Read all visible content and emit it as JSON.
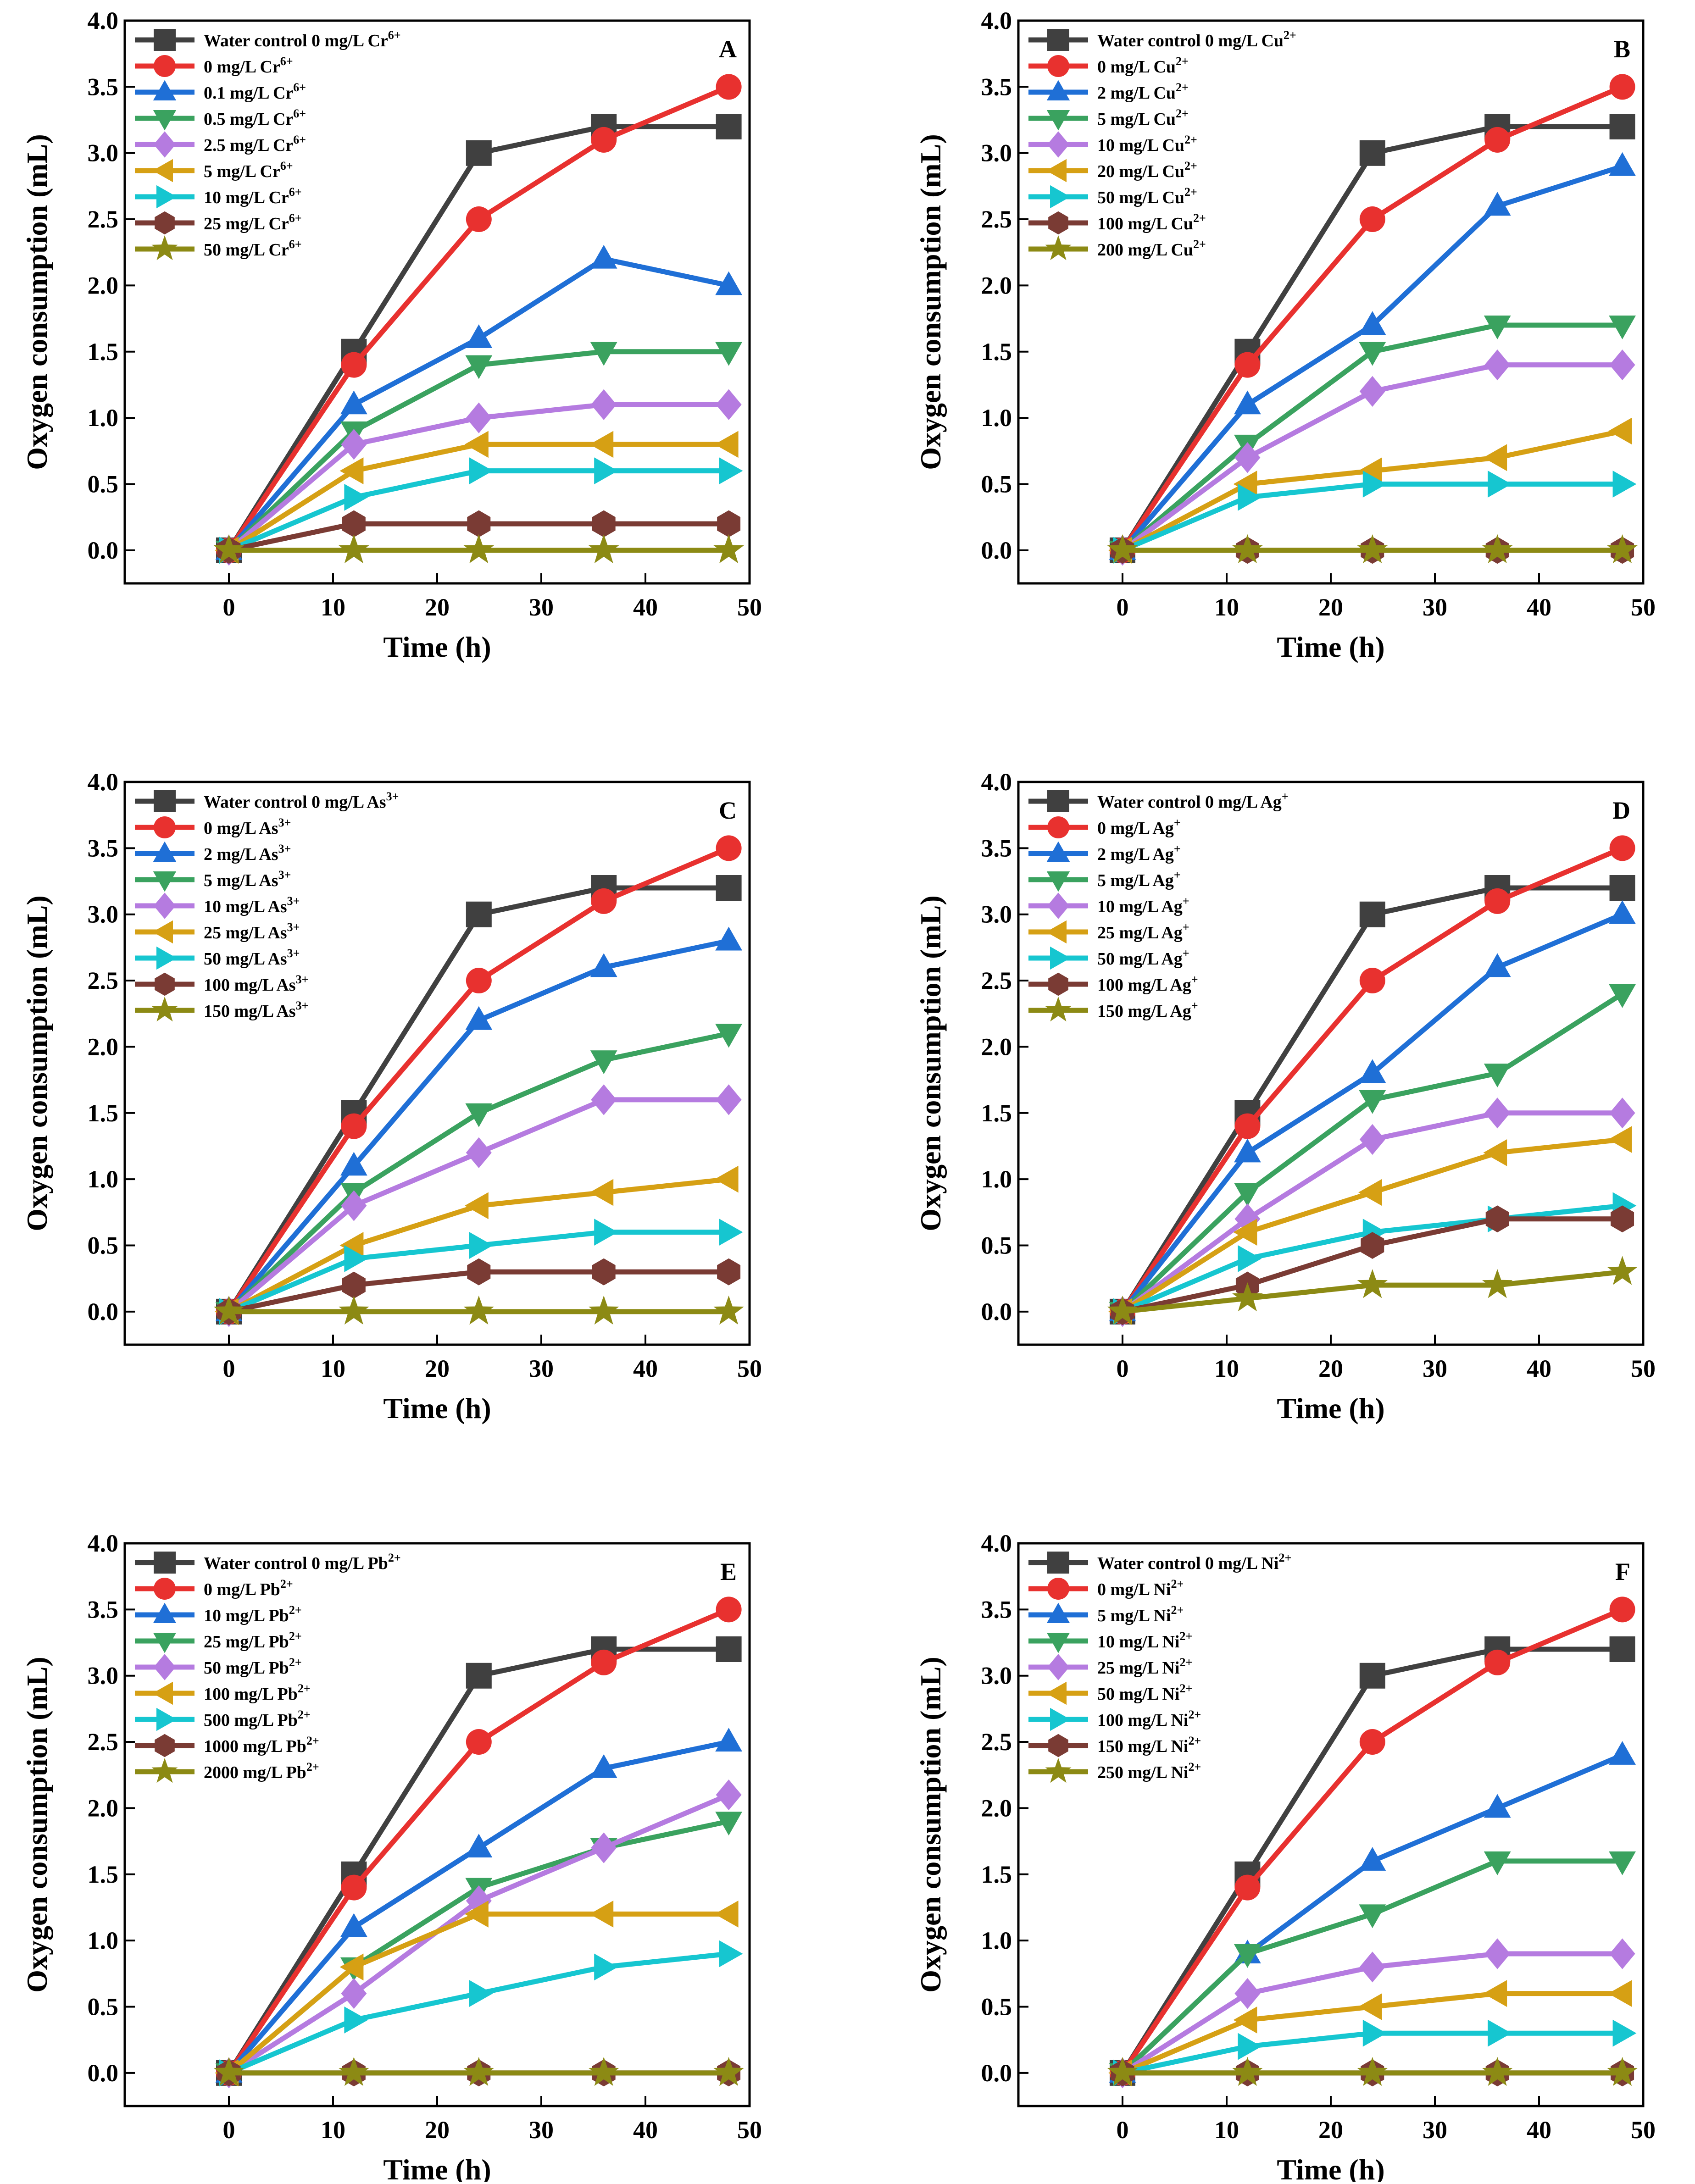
{
  "axis": {
    "xlabel": "Time (h)",
    "ylabel": "Oxygen consumption (mL)",
    "xlim": [
      -10,
      50
    ],
    "ylim": [
      -0.25,
      4.0
    ],
    "xticks": [
      0,
      10,
      20,
      30,
      40,
      50
    ],
    "yticks": [
      0.0,
      0.5,
      1.0,
      1.5,
      2.0,
      2.5,
      3.0,
      3.5,
      4.0
    ],
    "yticklabels": [
      "0.0",
      "0.5",
      "1.0",
      "1.5",
      "2.0",
      "2.5",
      "3.0",
      "3.5",
      "4.0"
    ]
  },
  "series_style": [
    {
      "color": "#404040",
      "marker": "square"
    },
    {
      "color": "#e8312f",
      "marker": "circle"
    },
    {
      "color": "#1f6fd6",
      "marker": "triangle-up"
    },
    {
      "color": "#3aa25f",
      "marker": "triangle-down"
    },
    {
      "color": "#b57be0",
      "marker": "diamond"
    },
    {
      "color": "#d6a014",
      "marker": "triangle-left"
    },
    {
      "color": "#16c6d0",
      "marker": "triangle-right"
    },
    {
      "color": "#7a3b34",
      "marker": "hexagon"
    },
    {
      "color": "#8c8a14",
      "marker": "star"
    }
  ],
  "chart_data": [
    {
      "type": "line",
      "panel": "A",
      "x": [
        0,
        12,
        24,
        36,
        48
      ],
      "xlabel": "Time (h)",
      "ylabel": "Oxygen consumption (mL)",
      "xlim": [
        -10,
        50
      ],
      "ylim": [
        -0.25,
        4.0
      ],
      "legend_position": "top-left",
      "series": [
        {
          "name": "Water control 0 mg/L Cr",
          "sup": "6+",
          "values": [
            0,
            1.5,
            3.0,
            3.2,
            3.2
          ]
        },
        {
          "name": "0 mg/L Cr",
          "sup": "6+",
          "values": [
            0,
            1.4,
            2.5,
            3.1,
            3.5
          ]
        },
        {
          "name": "0.1 mg/L Cr",
          "sup": "6+",
          "values": [
            0,
            1.1,
            1.6,
            2.2,
            2.0
          ]
        },
        {
          "name": "0.5 mg/L Cr",
          "sup": "6+",
          "values": [
            0,
            0.9,
            1.4,
            1.5,
            1.5
          ]
        },
        {
          "name": "2.5 mg/L Cr",
          "sup": "6+",
          "values": [
            0,
            0.8,
            1.0,
            1.1,
            1.1
          ]
        },
        {
          "name": "5 mg/L Cr",
          "sup": "6+",
          "values": [
            0,
            0.6,
            0.8,
            0.8,
            0.8
          ]
        },
        {
          "name": "10 mg/L Cr",
          "sup": "6+",
          "values": [
            0,
            0.4,
            0.6,
            0.6,
            0.6
          ]
        },
        {
          "name": "25 mg/L Cr",
          "sup": "6+",
          "values": [
            0,
            0.2,
            0.2,
            0.2,
            0.2
          ]
        },
        {
          "name": "50 mg/L Cr",
          "sup": "6+",
          "values": [
            0,
            0,
            0,
            0,
            0
          ]
        }
      ]
    },
    {
      "type": "line",
      "panel": "B",
      "x": [
        0,
        12,
        24,
        36,
        48
      ],
      "xlabel": "Time (h)",
      "ylabel": "Oxygen consumption (mL)",
      "xlim": [
        -10,
        50
      ],
      "ylim": [
        -0.25,
        4.0
      ],
      "legend_position": "top-left",
      "series": [
        {
          "name": "Water control 0 mg/L Cu",
          "sup": "2+",
          "values": [
            0,
            1.5,
            3.0,
            3.2,
            3.2
          ]
        },
        {
          "name": "0 mg/L Cu",
          "sup": "2+",
          "values": [
            0,
            1.4,
            2.5,
            3.1,
            3.5
          ]
        },
        {
          "name": "2 mg/L Cu",
          "sup": "2+",
          "values": [
            0,
            1.1,
            1.7,
            2.6,
            2.9
          ]
        },
        {
          "name": "5 mg/L Cu",
          "sup": "2+",
          "values": [
            0,
            0.8,
            1.5,
            1.7,
            1.7
          ]
        },
        {
          "name": "10 mg/L Cu",
          "sup": "2+",
          "values": [
            0,
            0.7,
            1.2,
            1.4,
            1.4
          ]
        },
        {
          "name": "20 mg/L Cu",
          "sup": "2+",
          "values": [
            0,
            0.5,
            0.6,
            0.7,
            0.9
          ]
        },
        {
          "name": "50 mg/L Cu",
          "sup": "2+",
          "values": [
            0,
            0.4,
            0.5,
            0.5,
            0.5
          ]
        },
        {
          "name": "100 mg/L Cu",
          "sup": "2+",
          "values": [
            0,
            0,
            0,
            0,
            0
          ]
        },
        {
          "name": "200 mg/L Cu",
          "sup": "2+",
          "values": [
            0,
            0,
            0,
            0,
            0
          ]
        }
      ]
    },
    {
      "type": "line",
      "panel": "C",
      "x": [
        0,
        12,
        24,
        36,
        48
      ],
      "xlabel": "Time (h)",
      "ylabel": "Oxygen consumption (mL)",
      "xlim": [
        -10,
        50
      ],
      "ylim": [
        -0.25,
        4.0
      ],
      "legend_position": "top-left",
      "series": [
        {
          "name": "Water control 0 mg/L As",
          "sup": "3+",
          "values": [
            0,
            1.5,
            3.0,
            3.2,
            3.2
          ]
        },
        {
          "name": "0 mg/L As",
          "sup": "3+",
          "values": [
            0,
            1.4,
            2.5,
            3.1,
            3.5
          ]
        },
        {
          "name": "2 mg/L As",
          "sup": "3+",
          "values": [
            0,
            1.1,
            2.2,
            2.6,
            2.8
          ]
        },
        {
          "name": "5 mg/L As",
          "sup": "3+",
          "values": [
            0,
            0.9,
            1.5,
            1.9,
            2.1
          ]
        },
        {
          "name": "10 mg/L As",
          "sup": "3+",
          "values": [
            0,
            0.8,
            1.2,
            1.6,
            1.6
          ]
        },
        {
          "name": "25 mg/L As",
          "sup": "3+",
          "values": [
            0,
            0.5,
            0.8,
            0.9,
            1.0
          ]
        },
        {
          "name": "50 mg/L As",
          "sup": "3+",
          "values": [
            0,
            0.4,
            0.5,
            0.6,
            0.6
          ]
        },
        {
          "name": "100 mg/L As",
          "sup": "3+",
          "values": [
            0,
            0.2,
            0.3,
            0.3,
            0.3
          ]
        },
        {
          "name": "150 mg/L As",
          "sup": "3+",
          "values": [
            0,
            0,
            0,
            0,
            0
          ]
        }
      ]
    },
    {
      "type": "line",
      "panel": "D",
      "x": [
        0,
        12,
        24,
        36,
        48
      ],
      "xlabel": "Time (h)",
      "ylabel": "Oxygen consumption (mL)",
      "xlim": [
        -10,
        50
      ],
      "ylim": [
        -0.25,
        4.0
      ],
      "legend_position": "top-left",
      "series": [
        {
          "name": "Water control 0 mg/L Ag",
          "sup": "+",
          "values": [
            0,
            1.5,
            3.0,
            3.2,
            3.2
          ]
        },
        {
          "name": "0 mg/L Ag",
          "sup": "+",
          "values": [
            0,
            1.4,
            2.5,
            3.1,
            3.5
          ]
        },
        {
          "name": "2 mg/L Ag",
          "sup": "+",
          "values": [
            0,
            1.2,
            1.8,
            2.6,
            3.0
          ]
        },
        {
          "name": "5 mg/L Ag",
          "sup": "+",
          "values": [
            0,
            0.9,
            1.6,
            1.8,
            2.4
          ]
        },
        {
          "name": "10 mg/L Ag",
          "sup": "+",
          "values": [
            0,
            0.7,
            1.3,
            1.5,
            1.5
          ]
        },
        {
          "name": "25 mg/L Ag",
          "sup": "+",
          "values": [
            0,
            0.6,
            0.9,
            1.2,
            1.3
          ]
        },
        {
          "name": "50 mg/L Ag",
          "sup": "+",
          "values": [
            0,
            0.4,
            0.6,
            0.7,
            0.8
          ]
        },
        {
          "name": "100 mg/L Ag",
          "sup": "+",
          "values": [
            0,
            0.2,
            0.5,
            0.7,
            0.7
          ]
        },
        {
          "name": "150 mg/L Ag",
          "sup": "+",
          "values": [
            0,
            0.1,
            0.2,
            0.2,
            0.3
          ]
        }
      ]
    },
    {
      "type": "line",
      "panel": "E",
      "x": [
        0,
        12,
        24,
        36,
        48
      ],
      "xlabel": "Time (h)",
      "ylabel": "Oxygen consumption (mL)",
      "xlim": [
        -10,
        50
      ],
      "ylim": [
        -0.25,
        4.0
      ],
      "legend_position": "top-left",
      "series": [
        {
          "name": "Water control 0 mg/L Pb",
          "sup": "2+",
          "values": [
            0,
            1.5,
            3.0,
            3.2,
            3.2
          ]
        },
        {
          "name": "0 mg/L Pb",
          "sup": "2+",
          "values": [
            0,
            1.4,
            2.5,
            3.1,
            3.5
          ]
        },
        {
          "name": "10 mg/L Pb",
          "sup": "2+",
          "values": [
            0,
            1.1,
            1.7,
            2.3,
            2.5
          ]
        },
        {
          "name": "25 mg/L Pb",
          "sup": "2+",
          "values": [
            0,
            0.8,
            1.4,
            1.7,
            1.9
          ]
        },
        {
          "name": "50 mg/L Pb",
          "sup": "2+",
          "values": [
            0,
            0.6,
            1.3,
            1.7,
            2.1
          ]
        },
        {
          "name": "100 mg/L Pb",
          "sup": "2+",
          "values": [
            0,
            0.8,
            1.2,
            1.2,
            1.2
          ]
        },
        {
          "name": "500 mg/L Pb",
          "sup": "2+",
          "values": [
            0,
            0.4,
            0.6,
            0.8,
            0.9
          ]
        },
        {
          "name": "1000 mg/L Pb",
          "sup": "2+",
          "values": [
            0,
            0,
            0,
            0,
            0
          ]
        },
        {
          "name": "2000 mg/L Pb",
          "sup": "2+",
          "values": [
            0,
            0,
            0,
            0,
            0
          ]
        }
      ]
    },
    {
      "type": "line",
      "panel": "F",
      "x": [
        0,
        12,
        24,
        36,
        48
      ],
      "xlabel": "Time (h)",
      "ylabel": "Oxygen consumption (mL)",
      "xlim": [
        -10,
        50
      ],
      "ylim": [
        -0.25,
        4.0
      ],
      "legend_position": "top-left",
      "series": [
        {
          "name": "Water control 0 mg/L Ni",
          "sup": "2+",
          "values": [
            0,
            1.5,
            3.0,
            3.2,
            3.2
          ]
        },
        {
          "name": "0 mg/L Ni",
          "sup": "2+",
          "values": [
            0,
            1.4,
            2.5,
            3.1,
            3.5
          ]
        },
        {
          "name": "5 mg/L Ni",
          "sup": "2+",
          "values": [
            0,
            0.9,
            1.6,
            2.0,
            2.4
          ]
        },
        {
          "name": "10 mg/L Ni",
          "sup": "2+",
          "values": [
            0,
            0.9,
            1.2,
            1.6,
            1.6
          ]
        },
        {
          "name": "25 mg/L Ni",
          "sup": "2+",
          "values": [
            0,
            0.6,
            0.8,
            0.9,
            0.9
          ]
        },
        {
          "name": "50 mg/L Ni",
          "sup": "2+",
          "values": [
            0,
            0.4,
            0.5,
            0.6,
            0.6
          ]
        },
        {
          "name": "100 mg/L Ni",
          "sup": "2+",
          "values": [
            0,
            0.2,
            0.3,
            0.3,
            0.3
          ]
        },
        {
          "name": "150 mg/L Ni",
          "sup": "2+",
          "values": [
            0,
            0,
            0,
            0,
            0
          ]
        },
        {
          "name": "250 mg/L Ni",
          "sup": "2+",
          "values": [
            0,
            0,
            0,
            0,
            0
          ]
        }
      ]
    }
  ]
}
